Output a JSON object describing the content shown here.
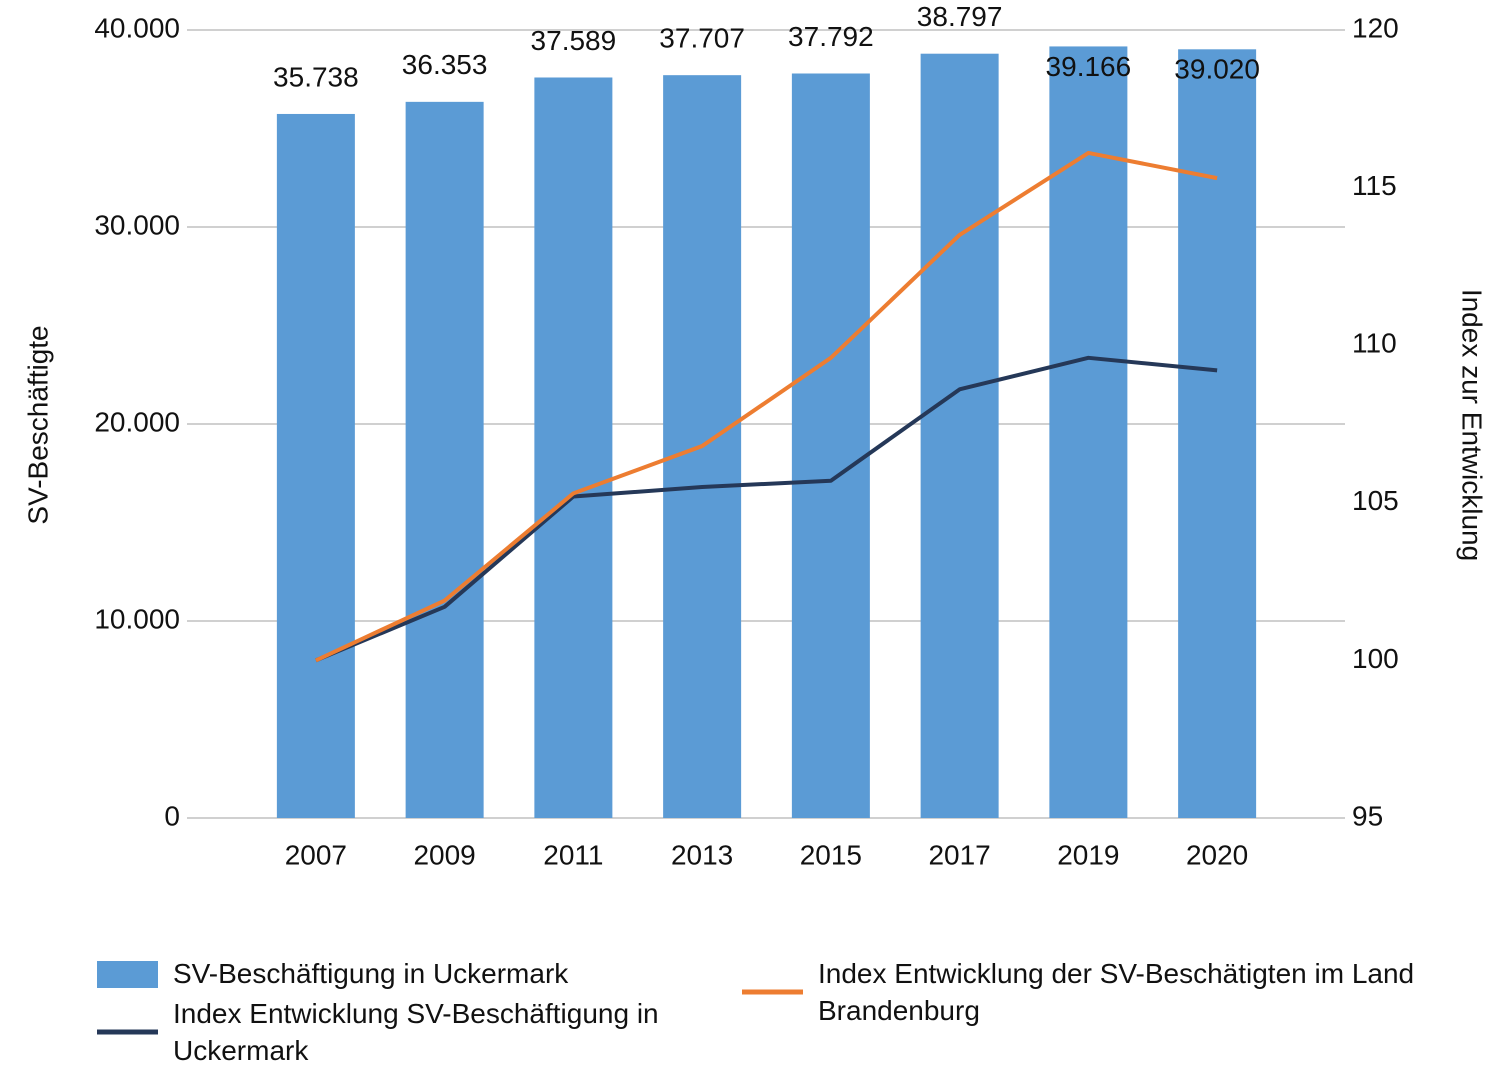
{
  "chart_data": {
    "type": "bar",
    "categories": [
      "2007",
      "2009",
      "2011",
      "2013",
      "2015",
      "2017",
      "2019",
      "2020"
    ],
    "ylabel": "SV-Beschäftigte",
    "y2label": "Index zur Entwicklung",
    "series": [
      {
        "name": "SV-Beschäftigung in Uckermark",
        "type": "bar",
        "color": "#5b9bd5",
        "values": [
          35738,
          36353,
          37589,
          37707,
          37792,
          38797,
          39166,
          39020
        ],
        "value_labels": [
          "35.738",
          "36.353",
          "37.589",
          "37.707",
          "37.792",
          "38.797",
          "39.166",
          "39.020"
        ]
      },
      {
        "name": "Index Entwicklung SV-Beschäftigung in Uckermark",
        "type": "line",
        "axis": "y2",
        "color": "#253858",
        "values": [
          100,
          101.7,
          105.2,
          105.5,
          105.7,
          108.6,
          109.6,
          109.2
        ]
      },
      {
        "name": "Index Entwicklung der SV-Beschätigten im Land Brandenburg",
        "type": "line",
        "axis": "y2",
        "color": "#ed7d31",
        "values": [
          100,
          101.9,
          105.3,
          106.8,
          109.6,
          113.5,
          116.1,
          115.3
        ]
      }
    ],
    "ylim": [
      0,
      40000
    ],
    "yticks": [
      0,
      {
        "value": 10000,
        "label": "10.000"
      },
      {
        "value": 20000,
        "label": "20.000"
      },
      {
        "value": 30000,
        "label": "30.000"
      },
      {
        "value": 40000,
        "label": "40.000"
      }
    ],
    "y2lim": [
      95,
      120
    ],
    "y2ticks": [
      95,
      100,
      105,
      110,
      115,
      120
    ],
    "grid": true,
    "legend": "bottom"
  }
}
